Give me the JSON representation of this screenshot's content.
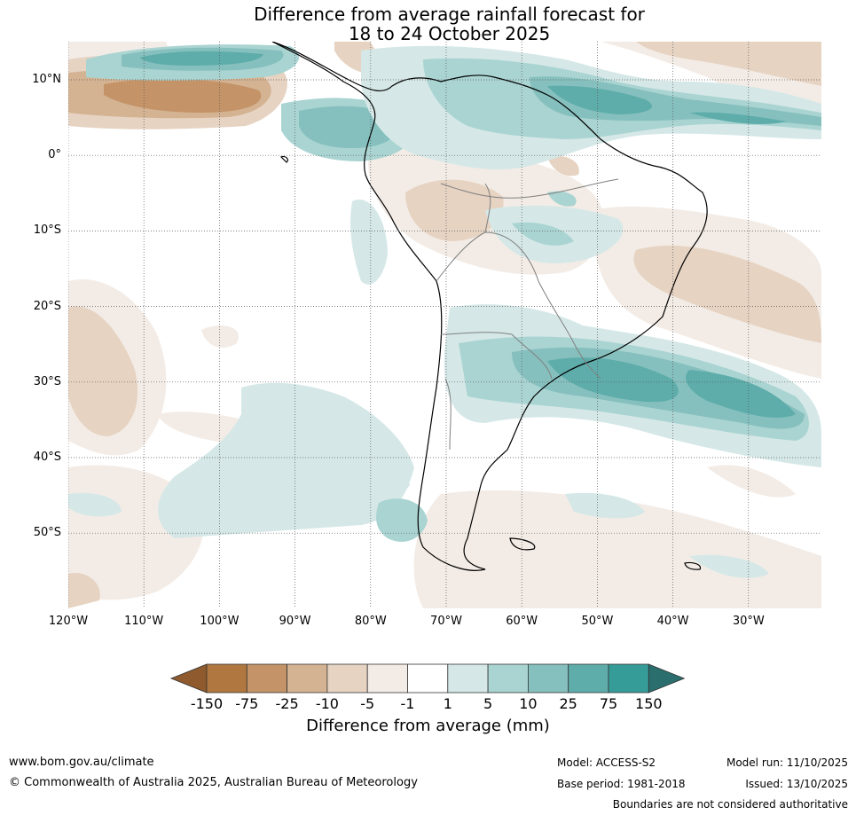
{
  "title": {
    "line1": "Difference from average rainfall forecast for",
    "line2": "18 to 24 October 2025"
  },
  "map": {
    "lat_labels": [
      "10°N",
      "0°",
      "10°S",
      "20°S",
      "30°S",
      "40°S",
      "50°S"
    ],
    "lon_labels": [
      "120°W",
      "110°W",
      "100°W",
      "90°W",
      "80°W",
      "70°W",
      "60°W",
      "50°W",
      "40°W",
      "30°W"
    ]
  },
  "colorbar": {
    "title": "Difference from average (mm)",
    "tick_labels": [
      "-150",
      "-75",
      "-25",
      "-10",
      "-5",
      "-1",
      "1",
      "5",
      "10",
      "25",
      "75",
      "150"
    ],
    "colors": [
      "#8e5a2e",
      "#b07840",
      "#c49468",
      "#d4b393",
      "#e6d3c2",
      "#f3ece6",
      "#ffffff",
      "#d5e8e7",
      "#aad4d2",
      "#86c0be",
      "#5eadab",
      "#369c98",
      "#2a6f6d"
    ]
  },
  "footer": {
    "website": "www.bom.gov.au/climate",
    "copyright": "© Commonwealth of Australia 2025, Australian Bureau of Meteorology",
    "model": "Model: ACCESS-S2",
    "base_period": "Base period: 1981-2018",
    "model_run": "Model run: 11/10/2025",
    "issued": "Issued: 13/10/2025",
    "disclaimer": "Boundaries are not considered authoritative"
  }
}
